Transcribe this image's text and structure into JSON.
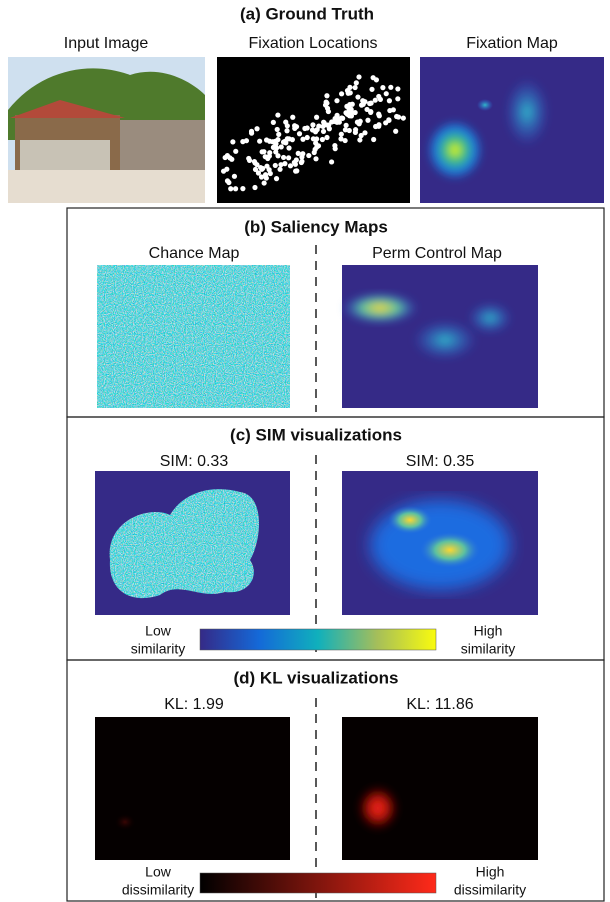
{
  "section_a": {
    "title": "(a) Ground Truth",
    "labels": [
      "Input Image",
      "Fixation Locations",
      "Fixation Map"
    ]
  },
  "section_b": {
    "title": "(b) Saliency Maps",
    "labels": [
      "Chance Map",
      "Perm Control Map"
    ]
  },
  "section_c": {
    "title": "(c) SIM visualizations",
    "labels": [
      "SIM: 0.33",
      "SIM: 0.35"
    ],
    "colorbar": {
      "low": [
        "Low",
        "similarity"
      ],
      "high": [
        "High",
        "similarity"
      ]
    }
  },
  "section_d": {
    "title": "(d) KL visualizations",
    "labels": [
      "KL: 1.99",
      "KL: 11.86"
    ],
    "colorbar": {
      "low": [
        "Low",
        "dissimilarity"
      ],
      "high": [
        "High",
        "dissimilarity"
      ]
    }
  }
}
